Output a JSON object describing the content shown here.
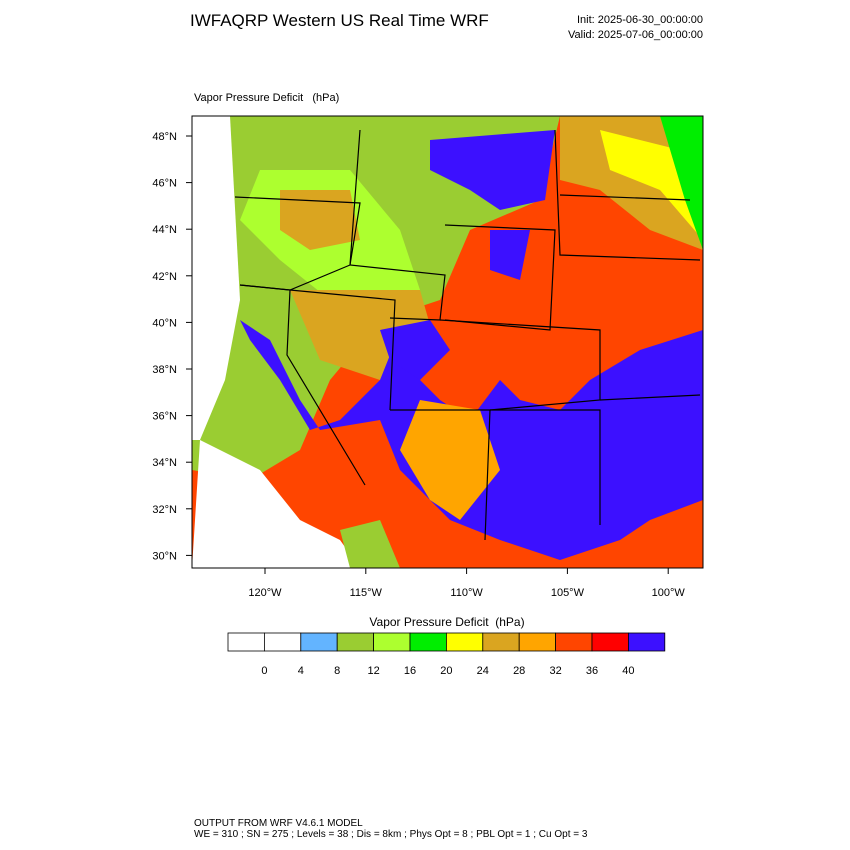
{
  "header": {
    "title": "IWFAQRP Western US Real Time WRF",
    "init": "Init: 2025-06-30_00:00:00",
    "valid": "Valid: 2025-07-06_00:00:00"
  },
  "map": {
    "subtitle": "Vapor Pressure Deficit   (hPa)",
    "lat_labels": [
      "48°N",
      "46°N",
      "44°N",
      "42°N",
      "40°N",
      "38°N",
      "36°N",
      "34°N",
      "32°N",
      "30°N"
    ],
    "lon_labels": [
      "120°W",
      "115°W",
      "110°W",
      "105°W",
      "100°W"
    ]
  },
  "colorbar": {
    "title": "Vapor Pressure Deficit  (hPa)",
    "levels": [
      0,
      4,
      8,
      12,
      16,
      20,
      24,
      28,
      32,
      36,
      40
    ],
    "colors": [
      "#ffffff",
      "#ffffff",
      "#63b4ff",
      "#9acd32",
      "#adff2f",
      "#00ee00",
      "#ffff00",
      "#daa520",
      "#ffa500",
      "#ff4500",
      "#ff0000",
      "#3c10ff"
    ]
  },
  "footer": {
    "line1": "OUTPUT FROM WRF V4.6.1 MODEL",
    "line2": "WE = 310 ; SN = 275 ; Levels = 38 ; Dis = 8km ; Phys Opt = 8 ; PBL Opt = 1 ; Cu Opt = 3"
  }
}
